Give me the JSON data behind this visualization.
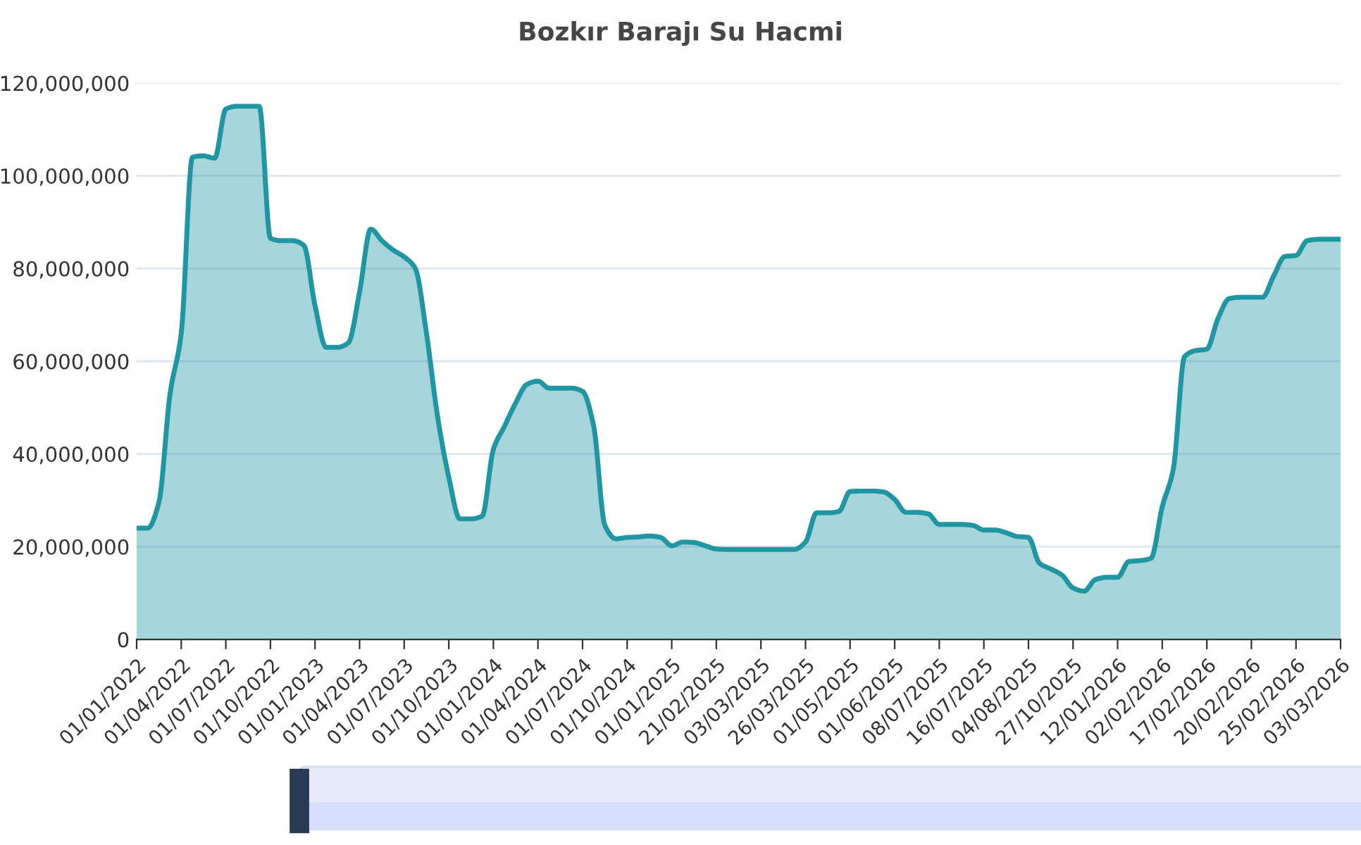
{
  "chart_data": {
    "type": "area",
    "title": "Bozkır Barajı Su Hacmi",
    "categories": [
      "01/01/2022",
      null,
      null,
      null,
      "01/04/2022",
      null,
      null,
      null,
      "01/07/2022",
      null,
      null,
      null,
      "01/10/2022",
      null,
      null,
      null,
      "01/01/2023",
      null,
      null,
      null,
      "01/04/2023",
      null,
      null,
      null,
      "01/07/2023",
      null,
      null,
      null,
      "01/10/2023",
      null,
      null,
      null,
      "01/01/2024",
      null,
      null,
      null,
      "01/04/2024",
      null,
      null,
      null,
      "01/07/2024",
      null,
      null,
      null,
      "01/10/2024",
      null,
      null,
      null,
      "01/01/2025",
      null,
      null,
      null,
      "21/02/2025",
      null,
      null,
      null,
      "03/03/2025",
      null,
      null,
      null,
      "26/03/2025",
      null,
      null,
      null,
      "01/05/2025",
      null,
      null,
      null,
      "01/06/2025",
      null,
      null,
      null,
      "08/07/2025",
      null,
      null,
      null,
      "16/07/2025",
      null,
      null,
      null,
      "04/08/2025",
      null,
      null,
      null,
      "27/10/2025",
      null,
      null,
      null,
      "12/01/2026",
      null,
      null,
      null,
      "02/02/2026",
      null,
      null,
      null,
      "17/02/2026",
      null,
      null,
      null,
      "20/02/2026",
      null,
      null,
      null,
      "25/02/2026",
      null,
      null,
      null,
      "03/03/2026"
    ],
    "series": [
      {
        "color": "#2196a3",
        "values": [
          24000000,
          24000000,
          29600000,
          53000000,
          66000000,
          104000000,
          104300000,
          103800000,
          114400000,
          115000000,
          115000000,
          115000000,
          86500000,
          86000000,
          86000000,
          85000000,
          72000000,
          63000000,
          63000000,
          64000000,
          75000000,
          88500000,
          86000000,
          84000000,
          82500000,
          80000000,
          66000000,
          48000000,
          35000000,
          26000000,
          26000000,
          26600000,
          41000000,
          46000000,
          51000000,
          55000000,
          55700000,
          54200000,
          54200000,
          54200000,
          53500000,
          46000000,
          24600000,
          21700000,
          22000000,
          22100000,
          22300000,
          22000000,
          20200000,
          21000000,
          20900000,
          20200000,
          19500000,
          19400000,
          19400000,
          19400000,
          19400000,
          19400000,
          19400000,
          19400000,
          21000000,
          27300000,
          27300000,
          27600000,
          31900000,
          32000000,
          32000000,
          31800000,
          30200000,
          27400000,
          27400000,
          27100000,
          24800000,
          24800000,
          24800000,
          24600000,
          23600000,
          23600000,
          23000000,
          22200000,
          22000000,
          16400000,
          15200000,
          13900000,
          11100000,
          10400000,
          12900000,
          13400000,
          13400000,
          16800000,
          17000000,
          17500000,
          28600000,
          36800000,
          61000000,
          62300000,
          62600000,
          69200000,
          73500000,
          73800000,
          73800000,
          73800000,
          78400000,
          82600000,
          82800000,
          86000000,
          86300000,
          86300000,
          86300000
        ]
      }
    ],
    "ylim": [
      0,
      120000000
    ],
    "yticks": [
      0,
      {
        "value": 20000000,
        "label": "20,000,000"
      },
      {
        "value": 40000000,
        "label": "40,000,000"
      },
      {
        "value": 60000000,
        "label": "60,000,000"
      },
      {
        "value": 80000000,
        "label": "80,000,000"
      },
      {
        "value": 100000000,
        "label": "100,000,000"
      },
      {
        "value": 120000000,
        "label": "120,000,000"
      }
    ],
    "grid": "y",
    "legend": false,
    "marker": "none",
    "line_style": "solid"
  }
}
